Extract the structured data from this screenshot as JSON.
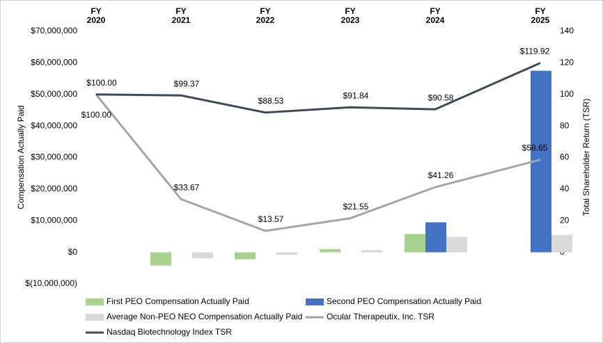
{
  "chart_data": {
    "type": "bar",
    "categories": [
      "FY 2020",
      "FY 2021",
      "FY 2022",
      "FY 2023",
      "FY 2024",
      "FY 2025"
    ],
    "ylabel": "Compensation Actually Paid",
    "y2label": "Total Shareholder Return (TSR)",
    "ylim": [
      -10000000,
      70000000
    ],
    "yticks": [
      {
        "value": -10000000,
        "label": "$(10,000,000)"
      },
      {
        "value": 0,
        "label": "$0"
      },
      {
        "value": 10000000,
        "label": "$10,000,000"
      },
      {
        "value": 20000000,
        "label": "$20,000,000"
      },
      {
        "value": 30000000,
        "label": "$30,000,000"
      },
      {
        "value": 40000000,
        "label": "$40,000,000"
      },
      {
        "value": 50000000,
        "label": "$50,000,000"
      },
      {
        "value": 60000000,
        "label": "$60,000,000"
      },
      {
        "value": 70000000,
        "label": "$70,000,000"
      }
    ],
    "y2lim": [
      -20,
      140
    ],
    "y2ticks": [
      0,
      20,
      40,
      60,
      80,
      100,
      120,
      140
    ],
    "grid": false,
    "series": [
      {
        "name": "First PEO Compensation Actually Paid",
        "type": "bar",
        "color": "#a9d18e",
        "values": [
          null,
          -4200000,
          -2200000,
          1000000,
          5800000,
          null
        ]
      },
      {
        "name": "Second PEO Compensation Actually Paid",
        "type": "bar",
        "color": "#4472c4",
        "values": [
          null,
          null,
          null,
          null,
          9500000,
          57500000
        ]
      },
      {
        "name": "Average Non-PEO NEO Compensation Actually Paid",
        "type": "bar",
        "color": "#d9d9d9",
        "values": [
          null,
          -1900000,
          -800000,
          700000,
          4900000,
          5500000
        ]
      },
      {
        "name": "Ocular Therapeutix, Inc. TSR",
        "type": "line",
        "axis": "y2",
        "color": "#a5a5a5",
        "values": [
          100,
          33.67,
          13.57,
          21.55,
          41.26,
          58.65
        ],
        "value_labels": [
          "$100.00",
          "$33.67",
          "$13.57",
          "$21.55",
          "$41.26",
          "$58.65"
        ]
      },
      {
        "name": "Nasdaq Biotechnology Index TSR",
        "type": "line",
        "axis": "y2",
        "color": "#3f4a57",
        "values": [
          100,
          99.37,
          88.53,
          91.84,
          90.58,
          119.92
        ],
        "value_labels": [
          "$100.00",
          "$99.37",
          "$88.53",
          "$91.84",
          "$90.58",
          "$119.92"
        ]
      }
    ]
  }
}
